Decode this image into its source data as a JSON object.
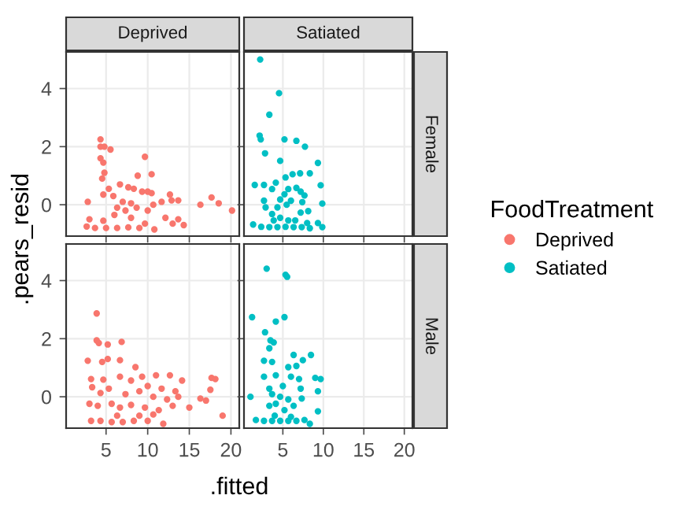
{
  "chart_data": [
    {
      "type": "scatter",
      "title": "Deprived",
      "ylabel": ".pears_resid",
      "legend": "right",
      "legend_title": "FoodTreatment",
      "marker": "circle",
      "grid": true,
      "tick_labels": "y",
      "xlim": [
        0.2,
        21
      ],
      "xticks": [
        5,
        10,
        15,
        20
      ],
      "ylim": [
        -1.08,
        5.26
      ],
      "yticks": [
        0,
        2,
        4
      ],
      "series": [
        {
          "name": "Deprived",
          "color": "#f8766d",
          "x": [
            4.33,
            4.33,
            4.8,
            5.53,
            4.33,
            4.67,
            4.8,
            4.53,
            9.67,
            8.8,
            10.47,
            2.8,
            12.67,
            12.87,
            11.67,
            13.67,
            16.33,
            17.67,
            18.53,
            20.13,
            6.67,
            7.67,
            8.33,
            9.33,
            10,
            10.47,
            5.33,
            5.87,
            7,
            8,
            8.67,
            4.67,
            6.33,
            7.33,
            10,
            10.67,
            12.13,
            13.67,
            14.33,
            13,
            3,
            2.67,
            3.67,
            5,
            6.33,
            7.67,
            9,
            10.8,
            9.67,
            6,
            4.67,
            8
          ],
          "values": [
            2.25,
            2,
            2,
            1.9,
            1.6,
            1.45,
            1.1,
            0.9,
            1.65,
            1,
            1.05,
            0.1,
            0.35,
            0.15,
            0.1,
            0.15,
            0,
            0.25,
            0.05,
            -0.2,
            0.7,
            0.6,
            0.55,
            0.45,
            0.45,
            0.4,
            0.55,
            0.3,
            0.1,
            0.05,
            -0.1,
            0.35,
            -0.1,
            -0.2,
            -0.2,
            0,
            -0.45,
            -0.5,
            -0.7,
            -0.65,
            -0.5,
            -0.75,
            -0.8,
            -0.8,
            -0.8,
            -0.78,
            -0.8,
            -0.85,
            -0.65,
            -0.35,
            -0.55,
            -0.45
          ]
        }
      ]
    },
    {
      "type": "scatter",
      "title": "Satiated",
      "annotations": [
        "Female"
      ],
      "marker": "circle",
      "grid": true,
      "tick_labels": false,
      "xlim": [
        0.2,
        21
      ],
      "xticks": [
        5,
        10,
        15,
        20
      ],
      "ylim": [
        -1.08,
        5.26
      ],
      "yticks": [
        0,
        2,
        4
      ],
      "series": [
        {
          "name": "Satiated",
          "color": "#00bfc4",
          "x": [
            2.2,
            4.53,
            3.33,
            2.13,
            2.27,
            2.8,
            5.2,
            6.67,
            7.73,
            4.67,
            9.33,
            7.13,
            8.33,
            6.2,
            5.33,
            1.53,
            2.67,
            4.13,
            3.67,
            9.67,
            5.67,
            6.67,
            7.2,
            5.2,
            4.67,
            6,
            7.67,
            2.67,
            2.87,
            9.87,
            7.4,
            4.33,
            5.47,
            3.67,
            7.2,
            8.13,
            4.67,
            5.67,
            6.53,
            8,
            9.33,
            9.87,
            1.33,
            2.33,
            3.33,
            4.33,
            5.33,
            6.33,
            7.33,
            8.33,
            3.87
          ],
          "values": [
            5.0,
            3.84,
            3.1,
            2.38,
            2.25,
            1.77,
            2.25,
            2.2,
            2.0,
            1.51,
            1.44,
            1.08,
            1.08,
            1.05,
            0.94,
            0.68,
            0.68,
            0.76,
            0.54,
            0.67,
            0.54,
            0.58,
            0.45,
            0.36,
            0.18,
            0.14,
            0.32,
            0.14,
            -0.09,
            0.04,
            0.09,
            -0.09,
            0,
            -0.32,
            -0.27,
            -0.22,
            -0.45,
            -0.54,
            -0.54,
            -0.63,
            -0.63,
            -0.77,
            -0.68,
            -0.76,
            -0.77,
            -0.77,
            -0.76,
            -0.77,
            -0.77,
            -0.81,
            -0.54
          ]
        }
      ]
    },
    {
      "type": "scatter",
      "xlabel": ".fitted",
      "marker": "circle",
      "grid": true,
      "xlim": [
        0.2,
        21
      ],
      "xticks": [
        5,
        10,
        15,
        20
      ],
      "ylim": [
        -1.08,
        5.26
      ],
      "yticks": [
        0,
        2,
        4
      ],
      "series": [
        {
          "color": "#f8766d",
          "x": [
            3.87,
            3.87,
            4.13,
            5.2,
            6.87,
            2.8,
            4.53,
            5.2,
            6.67,
            3.2,
            4.67,
            5.33,
            4.33,
            3.33,
            6.67,
            8.53,
            9.33,
            11,
            12.67,
            14.13,
            8,
            10,
            11.67,
            13.33,
            7.33,
            9,
            10.67,
            12.33,
            13.67,
            16.33,
            17,
            17.67,
            18.13,
            17.53,
            19,
            3,
            4,
            5.67,
            6.67,
            8,
            9.67,
            11.33,
            13,
            15,
            3.2,
            4.33,
            5.67,
            7,
            8.33,
            10,
            11.87,
            6.33,
            9,
            10.67
          ],
          "values": [
            2.87,
            1.94,
            1.85,
            1.8,
            1.89,
            1.24,
            1.2,
            1.3,
            1.26,
            0.61,
            0.59,
            0.28,
            0.13,
            0.33,
            0.69,
            1.02,
            0.69,
            0.74,
            0.74,
            0.56,
            0.56,
            0.37,
            0.28,
            0.19,
            0.09,
            0.19,
            0,
            -0.09,
            0,
            -0.06,
            -0.13,
            0.65,
            0.61,
            0.24,
            -0.65,
            -0.24,
            -0.31,
            -0.24,
            -0.37,
            -0.28,
            -0.37,
            -0.46,
            -0.31,
            -0.37,
            -0.83,
            -0.83,
            -0.87,
            -0.87,
            -0.83,
            -0.83,
            -0.93,
            -0.65,
            -0.65,
            -0.61
          ]
        }
      ]
    },
    {
      "type": "scatter",
      "annotations": [
        "Male"
      ],
      "marker": "circle",
      "grid": true,
      "tick_labels": "x",
      "xlim": [
        0.2,
        21
      ],
      "xticks": [
        5,
        10,
        15,
        20
      ],
      "ylim": [
        -1.08,
        5.26
      ],
      "yticks": [
        0,
        2,
        4
      ],
      "series": [
        {
          "color": "#00bfc4",
          "x": [
            3,
            5.33,
            5.53,
            1.2,
            4.13,
            5.2,
            2.8,
            3.47,
            3.87,
            3.33,
            6.33,
            8.47,
            7.47,
            2.67,
            3.67,
            5.67,
            6.67,
            2.67,
            4.13,
            6,
            7,
            9,
            9.67,
            3.33,
            5,
            7.2,
            9.33,
            1,
            3.67,
            4.67,
            5.67,
            7.33,
            3.33,
            4.13,
            6.33,
            9.33,
            5.2,
            1.67,
            2.67,
            3.67,
            4.67,
            5.67,
            6.67,
            7.67,
            8.33,
            4,
            6
          ],
          "values": [
            4.41,
            4.2,
            4.13,
            2.74,
            2.59,
            2.74,
            2.22,
            1.94,
            1.87,
            1.67,
            1.44,
            1.44,
            1.26,
            1.24,
            1.2,
            1.02,
            1.06,
            0.69,
            0.74,
            0.69,
            0.61,
            0.65,
            0.61,
            0.28,
            0.37,
            0.28,
            0.19,
            0,
            0.09,
            0,
            -0.09,
            -0.06,
            -0.31,
            -0.24,
            -0.31,
            -0.5,
            -0.46,
            -0.8,
            -0.83,
            -0.83,
            -0.83,
            -0.83,
            -0.83,
            -0.8,
            -0.93,
            -0.65,
            -0.69
          ]
        }
      ]
    }
  ]
}
